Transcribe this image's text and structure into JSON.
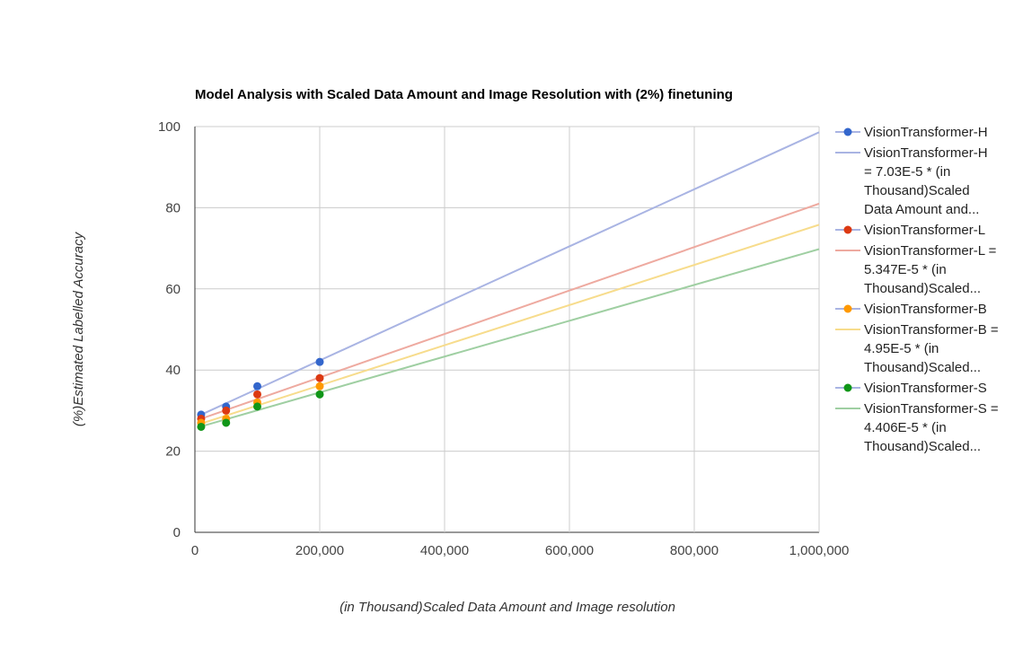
{
  "chart_data": {
    "type": "scatter",
    "title": "Model Analysis with Scaled Data Amount and Image Resolution with (2%) finetuning",
    "x_label": "(in Thousand)Scaled Data Amount and Image resolution",
    "y_label": "(%)Estimated Labelled Accuracy",
    "xlim": [
      0,
      1000000
    ],
    "ylim": [
      0,
      100
    ],
    "xticks": [
      0,
      {
        "value": 200000,
        "label": "200,000"
      },
      {
        "value": 400000,
        "label": "400,000"
      },
      {
        "value": 600000,
        "label": "600,000"
      },
      {
        "value": 800000,
        "label": "800,000"
      },
      {
        "value": 1000000,
        "label": "1,000,000"
      }
    ],
    "yticks": [
      0,
      20,
      40,
      60,
      80,
      100
    ],
    "grid": true,
    "legend": "right",
    "series": [
      {
        "name": "VisionTransformer-H",
        "color": "#3366cc",
        "mode": "markers",
        "x": [
          10000,
          50000,
          100000,
          200000
        ],
        "values": [
          29,
          31,
          36,
          42
        ]
      },
      {
        "name": "VisionTransformer-H = 7.03E-5 * (in Thousand)Scaled Data Amount and...",
        "color": "#a9b4e3",
        "mode": "line",
        "x": [
          10000,
          1000000
        ],
        "values": [
          29.0,
          98.6
        ]
      },
      {
        "name": "VisionTransformer-L",
        "color": "#dc3912",
        "mode": "markers",
        "x": [
          10000,
          50000,
          100000,
          200000
        ],
        "values": [
          28,
          30,
          34,
          38
        ]
      },
      {
        "name": "VisionTransformer-L = 5.347E-5 * (in Thousand)Scaled...",
        "color": "#eeaaa0",
        "mode": "line",
        "x": [
          10000,
          1000000
        ],
        "values": [
          28.0,
          81.0
        ]
      },
      {
        "name": "VisionTransformer-B",
        "color": "#ff9900",
        "mode": "markers",
        "x": [
          10000,
          50000,
          100000,
          200000
        ],
        "values": [
          27,
          28,
          32,
          36
        ]
      },
      {
        "name": "VisionTransformer-B = 4.95E-5 * (in Thousand)Scaled...",
        "color": "#f7dc8c",
        "mode": "line",
        "x": [
          10000,
          1000000
        ],
        "values": [
          26.8,
          75.8
        ]
      },
      {
        "name": "VisionTransformer-S",
        "color": "#109618",
        "mode": "markers",
        "x": [
          10000,
          50000,
          100000,
          200000
        ],
        "values": [
          26,
          27,
          31,
          34
        ]
      },
      {
        "name": "VisionTransformer-S = 4.406E-5 * (in Thousand)Scaled...",
        "color": "#9fcfa2",
        "mode": "line",
        "x": [
          10000,
          1000000
        ],
        "values": [
          26.1,
          69.8
        ]
      }
    ]
  }
}
